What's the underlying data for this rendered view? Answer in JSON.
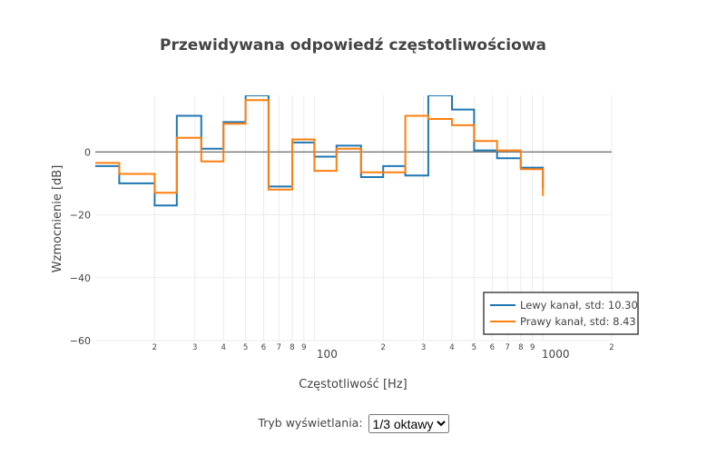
{
  "chart_data": {
    "type": "line",
    "title": "Przewidywana odpowiedź częstotliwościowa",
    "xlabel": "Częstotliwość [Hz]",
    "ylabel": "Wzmocnienie [dB]",
    "xscale": "log",
    "xlim": [
      11,
      2000
    ],
    "ylim": [
      -60,
      18
    ],
    "line_shape": "step",
    "grid": true,
    "legend_position": "bottom-right",
    "y_ticks": [
      0,
      -20,
      -40,
      -60
    ],
    "y_tick_labels": [
      "0",
      "−20",
      "−40",
      "−60"
    ],
    "x_ticks": [
      20,
      30,
      40,
      50,
      60,
      70,
      80,
      90,
      100,
      200,
      300,
      400,
      500,
      600,
      700,
      800,
      900,
      1000,
      2000
    ],
    "x_tick_labels": [
      "2",
      "3",
      "4",
      "5",
      "6",
      "7",
      "8",
      "9",
      "100",
      "2",
      "3",
      "4",
      "5",
      "6",
      "7",
      "8",
      "9",
      "1000",
      "2"
    ],
    "x_band_edges": [
      11,
      14,
      20,
      25,
      32,
      40,
      50,
      63,
      80,
      100,
      125,
      160,
      200,
      250,
      315,
      400,
      500,
      630,
      800,
      1000
    ],
    "series": [
      {
        "name": "Lewy kanał, std: 10.30",
        "color": "#1f77b4",
        "values": [
          -4.5,
          -10,
          -17,
          11.5,
          1,
          9.5,
          18,
          -11,
          3,
          -1.5,
          2,
          -8,
          -4.5,
          -7.5,
          18,
          13.5,
          0.5,
          -2,
          -5,
          -11.5
        ]
      },
      {
        "name": "Prawy kanał, std: 8.43",
        "color": "#ff7f0e",
        "values": [
          -3.5,
          -7,
          -13,
          4.5,
          -3,
          9,
          16.5,
          -12,
          4,
          -6,
          1,
          -6.5,
          -6.5,
          11.5,
          10.5,
          8.5,
          3.5,
          0.5,
          -5.5,
          -14
        ]
      }
    ]
  },
  "controls": {
    "mode_label": "Tryb wyświetlania:",
    "mode_value": "1/3 oktawy"
  }
}
